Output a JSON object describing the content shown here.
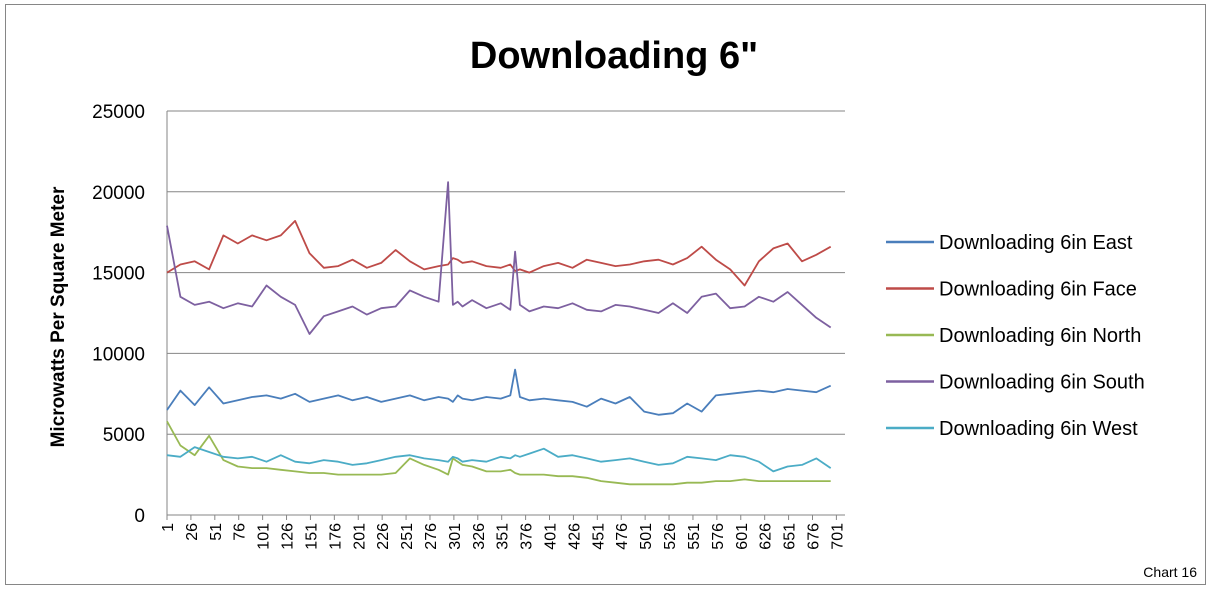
{
  "footer": {
    "label": "Chart 16"
  },
  "chart_data": {
    "type": "line",
    "title": "Downloading 6\"",
    "xlabel": "",
    "ylabel": "Microwatts Per Square Meter",
    "ylim": [
      0,
      25000
    ],
    "yticks": [
      0,
      5000,
      10000,
      15000,
      20000,
      25000
    ],
    "xlim": [
      1,
      710
    ],
    "xticks": [
      1,
      26,
      51,
      76,
      101,
      126,
      151,
      176,
      201,
      226,
      251,
      276,
      301,
      326,
      351,
      376,
      401,
      426,
      451,
      476,
      501,
      526,
      551,
      576,
      601,
      626,
      651,
      676,
      701
    ],
    "grid": "horizontal",
    "legend_position": "right",
    "x": [
      1,
      15,
      30,
      45,
      60,
      75,
      90,
      105,
      120,
      135,
      150,
      165,
      180,
      195,
      210,
      225,
      240,
      255,
      270,
      285,
      295,
      300,
      305,
      310,
      320,
      335,
      350,
      360,
      365,
      370,
      380,
      395,
      410,
      425,
      440,
      455,
      470,
      485,
      500,
      515,
      530,
      545,
      560,
      575,
      590,
      605,
      620,
      635,
      650,
      665,
      680,
      695
    ],
    "series": [
      {
        "name": "Downloading 6in East",
        "color": "#4a7ebb",
        "values": [
          6500,
          7700,
          6800,
          7900,
          6900,
          7100,
          7300,
          7400,
          7200,
          7500,
          7000,
          7200,
          7400,
          7100,
          7300,
          7000,
          7200,
          7400,
          7100,
          7300,
          7200,
          7000,
          7400,
          7200,
          7100,
          7300,
          7200,
          7400,
          9000,
          7300,
          7100,
          7200,
          7100,
          7000,
          6700,
          7200,
          6900,
          7300,
          6400,
          6200,
          6300,
          6900,
          6400,
          7400,
          7500,
          7600,
          7700,
          7600,
          7800,
          7700,
          7600,
          8000
        ]
      },
      {
        "name": "Downloading 6in Face",
        "color": "#be4b48",
        "values": [
          15000,
          15500,
          15700,
          15200,
          17300,
          16800,
          17300,
          17000,
          17300,
          18200,
          16200,
          15300,
          15400,
          15800,
          15300,
          15600,
          16400,
          15700,
          15200,
          15400,
          15500,
          15900,
          15800,
          15600,
          15700,
          15400,
          15300,
          15500,
          15100,
          15200,
          15000,
          15400,
          15600,
          15300,
          15800,
          15600,
          15400,
          15500,
          15700,
          15800,
          15500,
          15900,
          16600,
          15800,
          15200,
          14200,
          15700,
          16500,
          16800,
          15700,
          16100,
          16600
        ]
      },
      {
        "name": "Downloading 6in North",
        "color": "#98b954",
        "values": [
          5800,
          4300,
          3700,
          4900,
          3400,
          3000,
          2900,
          2900,
          2800,
          2700,
          2600,
          2600,
          2500,
          2500,
          2500,
          2500,
          2600,
          3500,
          3100,
          2800,
          2500,
          3500,
          3300,
          3100,
          3000,
          2700,
          2700,
          2800,
          2600,
          2500,
          2500,
          2500,
          2400,
          2400,
          2300,
          2100,
          2000,
          1900,
          1900,
          1900,
          1900,
          2000,
          2000,
          2100,
          2100,
          2200,
          2100,
          2100,
          2100,
          2100,
          2100,
          2100
        ]
      },
      {
        "name": "Downloading 6in South",
        "color": "#7d60a0",
        "values": [
          17900,
          13500,
          13000,
          13200,
          12800,
          13100,
          12900,
          14200,
          13500,
          13000,
          11200,
          12300,
          12600,
          12900,
          12400,
          12800,
          12900,
          13900,
          13500,
          13200,
          20600,
          13000,
          13200,
          12900,
          13300,
          12800,
          13100,
          12700,
          16300,
          13000,
          12600,
          12900,
          12800,
          13100,
          12700,
          12600,
          13000,
          12900,
          12700,
          12500,
          13100,
          12500,
          13500,
          13700,
          12800,
          12900,
          13500,
          13200,
          13800,
          13000,
          12200,
          11600
        ]
      },
      {
        "name": "Downloading 6in West",
        "color": "#4bacc6",
        "values": [
          3700,
          3600,
          4200,
          3900,
          3600,
          3500,
          3600,
          3300,
          3700,
          3300,
          3200,
          3400,
          3300,
          3100,
          3200,
          3400,
          3600,
          3700,
          3500,
          3400,
          3300,
          3600,
          3500,
          3300,
          3400,
          3300,
          3600,
          3500,
          3700,
          3600,
          3800,
          4100,
          3600,
          3700,
          3500,
          3300,
          3400,
          3500,
          3300,
          3100,
          3200,
          3600,
          3500,
          3400,
          3700,
          3600,
          3300,
          2700,
          3000,
          3100,
          3500,
          2900
        ]
      }
    ]
  }
}
